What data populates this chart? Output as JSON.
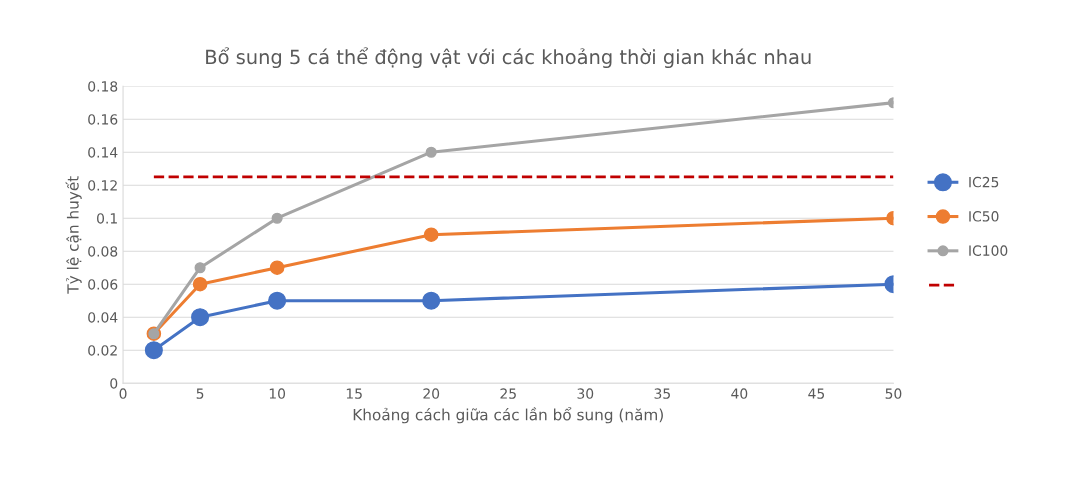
{
  "chart_data": {
    "type": "line",
    "title": "Bổ sung 5 cá thể động vật với các khoảng thời gian khác nhau",
    "xlabel": "Khoảng cách giữa các lần bổ sung (năm)",
    "ylabel": "Tỷ lệ cận huyết",
    "x": [
      2,
      5,
      10,
      20,
      50
    ],
    "series": [
      {
        "name": "IC25",
        "color": "#4472c4",
        "values": [
          0.02,
          0.04,
          0.05,
          0.05,
          0.06
        ]
      },
      {
        "name": "IC50",
        "color": "#ed7d31",
        "values": [
          0.03,
          0.06,
          0.07,
          0.09,
          0.1
        ]
      },
      {
        "name": "IC100",
        "color": "#a5a5a5",
        "values": [
          0.03,
          0.07,
          0.1,
          0.14,
          0.17
        ]
      }
    ],
    "ref_lines": [
      {
        "axis": "y",
        "value": 0.125,
        "label": null,
        "color": "#c00000",
        "line_style": "dashed"
      }
    ],
    "xlim": [
      0,
      50
    ],
    "xticks": [
      0,
      5,
      10,
      15,
      20,
      25,
      30,
      35,
      40,
      45,
      50
    ],
    "ylim": [
      0,
      0.18
    ],
    "yticks": [
      0,
      0.02,
      0.04,
      0.06,
      0.08,
      0.1,
      0.12,
      0.14,
      0.16,
      0.18
    ],
    "grid": "y",
    "legend": "right",
    "marker": "circle",
    "line_style": "solid"
  }
}
